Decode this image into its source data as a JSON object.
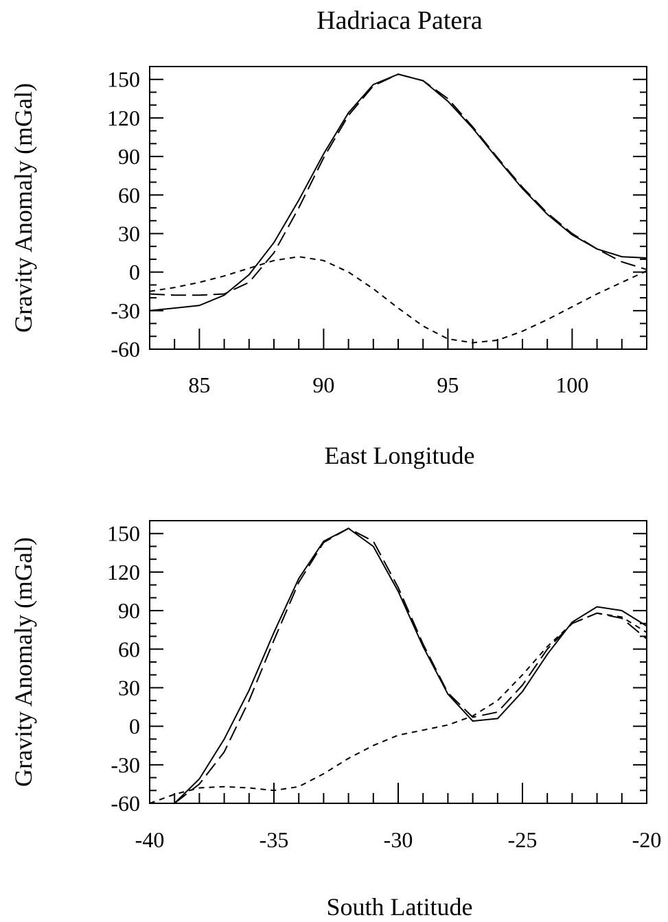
{
  "figure_title": "Hadriaca Patera",
  "chart_data": [
    {
      "type": "line",
      "xlabel": "East Longitude",
      "ylabel": "Gravity Anomaly (mGal)",
      "xlim": [
        83,
        103
      ],
      "ylim": [
        -60,
        160
      ],
      "xticks": [
        85,
        90,
        95,
        100
      ],
      "yticks": [
        -60,
        -30,
        0,
        30,
        60,
        90,
        120,
        150
      ],
      "grid": false,
      "legend": "none",
      "series": [
        {
          "style": "solid",
          "x": [
            83,
            84,
            85,
            86,
            87,
            88,
            89,
            90,
            91,
            92,
            93,
            94,
            95,
            96,
            97,
            98,
            99,
            100,
            101,
            102,
            103
          ],
          "y": [
            -30,
            -28,
            -26,
            -18,
            -2,
            23,
            56,
            92,
            124,
            146,
            154,
            149,
            133,
            112,
            88,
            65,
            45,
            29,
            18,
            12,
            11
          ]
        },
        {
          "style": "long-dash",
          "x": [
            83,
            84,
            85,
            86,
            87,
            88,
            89,
            90,
            91,
            92,
            93,
            94,
            95,
            96,
            97,
            98,
            99,
            100,
            101,
            102,
            103
          ],
          "y": [
            -17,
            -18,
            -18,
            -17,
            -8,
            15,
            50,
            89,
            122,
            145,
            154,
            149,
            135,
            113,
            89,
            66,
            46,
            30,
            18,
            8,
            2
          ]
        },
        {
          "style": "short-dash",
          "x": [
            83,
            84,
            85,
            86,
            87,
            88,
            89,
            90,
            91,
            92,
            93,
            94,
            95,
            96,
            97,
            98,
            99,
            100,
            101,
            102,
            103
          ],
          "y": [
            -15,
            -12,
            -8,
            -3,
            3,
            9,
            12,
            9,
            0,
            -13,
            -28,
            -42,
            -52,
            -55,
            -53,
            -46,
            -37,
            -27,
            -17,
            -8,
            1
          ]
        }
      ]
    },
    {
      "type": "line",
      "xlabel": "South Latitude",
      "ylabel": "Gravity Anomaly (mGal)",
      "xlim": [
        -40,
        -20
      ],
      "ylim": [
        -60,
        160
      ],
      "xticks": [
        -40,
        -35,
        -30,
        -25,
        -20
      ],
      "yticks": [
        -60,
        -30,
        0,
        30,
        60,
        90,
        120,
        150
      ],
      "grid": false,
      "legend": "none",
      "series": [
        {
          "style": "solid",
          "x": [
            -39,
            -38,
            -37,
            -36,
            -35,
            -34,
            -33,
            -32,
            -31,
            -30,
            -29,
            -28,
            -27,
            -26,
            -25,
            -24,
            -23,
            -22,
            -21,
            -20
          ],
          "y": [
            -60,
            -41,
            -10,
            28,
            73,
            115,
            144,
            154,
            140,
            105,
            62,
            25,
            4,
            6,
            27,
            56,
            81,
            93,
            90,
            78
          ]
        },
        {
          "style": "long-dash",
          "x": [
            -39,
            -38,
            -37,
            -36,
            -35,
            -34,
            -33,
            -32,
            -31,
            -30,
            -29,
            -28,
            -27,
            -26,
            -25,
            -24,
            -23,
            -22,
            -21,
            -20
          ],
          "y": [
            -60,
            -45,
            -20,
            20,
            67,
            112,
            143,
            154,
            144,
            108,
            64,
            26,
            7,
            11,
            32,
            60,
            80,
            88,
            84,
            68
          ]
        },
        {
          "style": "short-dash",
          "x": [
            -40,
            -39,
            -38,
            -37,
            -36,
            -35,
            -34,
            -33,
            -32,
            -31,
            -30,
            -29,
            -28,
            -27,
            -26,
            -25,
            -24,
            -23,
            -22,
            -21,
            -20
          ],
          "y": [
            -60,
            -53,
            -48,
            -47,
            -48,
            -50,
            -47,
            -37,
            -25,
            -15,
            -7,
            -3,
            1,
            8,
            20,
            40,
            62,
            80,
            88,
            85,
            73
          ]
        }
      ]
    }
  ]
}
